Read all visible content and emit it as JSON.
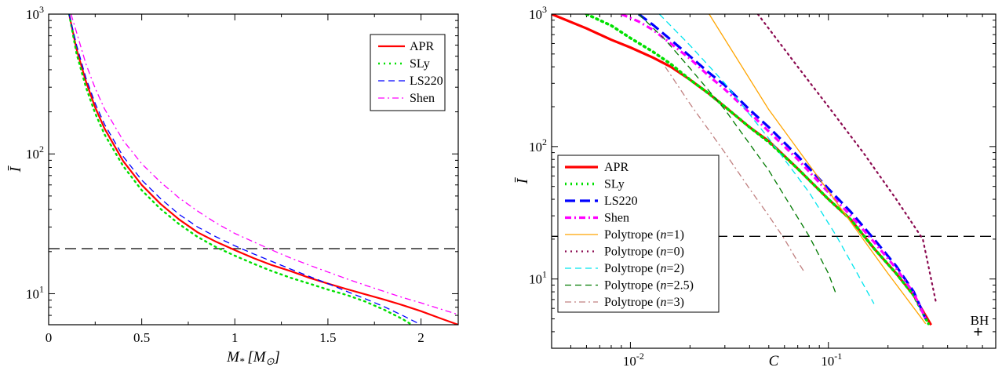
{
  "chart_data": [
    {
      "type": "line",
      "xlabel": "M_* [M_⊙]",
      "xlabel_main": "M",
      "xlabel_sub": "*",
      "xlabel_unit": "[M",
      "xlabel_unit_sub": "⊙",
      "xlabel_unit_close": "]",
      "ylabel": "Ī",
      "xlim": [
        0,
        2.2
      ],
      "ylim": [
        6,
        1000
      ],
      "yscale": "log",
      "xticks": [
        0,
        0.5,
        1,
        1.5,
        2
      ],
      "xtick_labels": [
        "0",
        "0.5",
        "1",
        "1.5",
        "2"
      ],
      "yticks": [
        10,
        100,
        1000
      ],
      "ytick_labels": [
        {
          "base": "10",
          "exp": "1"
        },
        {
          "base": "10",
          "exp": "2"
        },
        {
          "base": "10",
          "exp": "3"
        }
      ],
      "grid": false,
      "legend": "top-right",
      "hline": 21,
      "series": [
        {
          "name": "APR",
          "color": "#ff0000",
          "dash": "solid",
          "width": 2.2,
          "x": [
            0.11,
            0.15,
            0.2,
            0.25,
            0.3,
            0.4,
            0.5,
            0.6,
            0.7,
            0.8,
            0.9,
            1.0,
            1.1,
            1.2,
            1.3,
            1.4,
            1.5,
            1.6,
            1.7,
            1.8,
            1.9,
            2.0,
            2.1,
            2.2
          ],
          "y": [
            1000,
            560,
            330,
            215,
            152,
            89,
            60,
            44,
            34,
            27.5,
            23.5,
            20.5,
            18,
            16,
            14.5,
            13,
            11.8,
            10.8,
            9.9,
            9.1,
            8.3,
            7.5,
            6.7,
            6
          ]
        },
        {
          "name": "SLy",
          "color": "#00e000",
          "dash": "dot",
          "width": 2.4,
          "x": [
            0.11,
            0.15,
            0.2,
            0.25,
            0.3,
            0.4,
            0.5,
            0.6,
            0.7,
            0.8,
            0.9,
            1.0,
            1.1,
            1.2,
            1.3,
            1.4,
            1.5,
            1.6,
            1.7,
            1.8,
            1.9,
            1.95
          ],
          "y": [
            1000,
            520,
            300,
            195,
            138,
            82,
            55,
            40.5,
            31.5,
            25.5,
            21.5,
            18.7,
            16.4,
            14.5,
            13,
            11.8,
            10.7,
            9.8,
            8.8,
            7.7,
            6.6,
            6
          ]
        },
        {
          "name": "LS220",
          "color": "#0000ff",
          "dash": "dash",
          "width": 1.3,
          "x": [
            0.11,
            0.15,
            0.2,
            0.25,
            0.3,
            0.4,
            0.5,
            0.6,
            0.7,
            0.8,
            0.9,
            1.0,
            1.1,
            1.2,
            1.3,
            1.4,
            1.5,
            1.6,
            1.7,
            1.8,
            1.9,
            2.0
          ],
          "y": [
            1000,
            600,
            350,
            230,
            163,
            96,
            65,
            48,
            37,
            30,
            25.5,
            22,
            19.3,
            17,
            15,
            13.3,
            11.8,
            10.4,
            9.2,
            8.1,
            7,
            6
          ]
        },
        {
          "name": "Shen",
          "color": "#ff00ff",
          "dash": "dashdot",
          "width": 1.3,
          "x": [
            0.12,
            0.15,
            0.2,
            0.25,
            0.3,
            0.4,
            0.5,
            0.6,
            0.7,
            0.8,
            0.9,
            1.0,
            1.1,
            1.2,
            1.3,
            1.4,
            1.5,
            1.6,
            1.7,
            1.8,
            1.9,
            2.0,
            2.1,
            2.2
          ],
          "y": [
            1000,
            740,
            440,
            295,
            210,
            125,
            85,
            63,
            48.5,
            39,
            32,
            27,
            23.5,
            20.5,
            18,
            16,
            14.3,
            12.8,
            11.5,
            10.4,
            9.4,
            8.6,
            7.8,
            7.1
          ]
        }
      ]
    },
    {
      "type": "line",
      "xlabel": "C",
      "ylabel": "Ī",
      "xlim": [
        0.004,
        0.7
      ],
      "ylim": [
        3,
        1000
      ],
      "xscale": "log",
      "yscale": "log",
      "xticks": [
        0.01,
        0.1
      ],
      "xtick_labels": [
        {
          "base": "10",
          "exp": "-2"
        },
        {
          "base": "10",
          "exp": "-1"
        }
      ],
      "yticks": [
        10,
        100,
        1000
      ],
      "ytick_labels": [
        {
          "base": "10",
          "exp": "1"
        },
        {
          "base": "10",
          "exp": "2"
        },
        {
          "base": "10",
          "exp": "3"
        }
      ],
      "grid": false,
      "legend": "bottom-left",
      "hline": 21,
      "annotation": {
        "text": "BH",
        "x": 0.57,
        "y": 4
      }
    }
  ]
}
